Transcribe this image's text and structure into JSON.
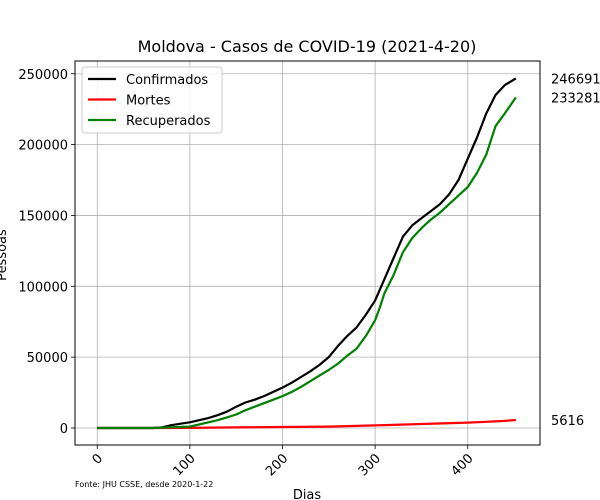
{
  "chart_data": {
    "type": "line",
    "title": "Moldova - Casos de COVID-19 (2021-4-20)",
    "xlabel": "Dias",
    "ylabel": "Pessoas",
    "xlim": [
      -24,
      478
    ],
    "ylim": [
      -12000,
      259000
    ],
    "xticks": [
      0,
      100,
      200,
      300,
      400
    ],
    "yticks": [
      0,
      50000,
      100000,
      150000,
      200000,
      250000
    ],
    "grid": true,
    "legend_position": "top-left",
    "source_note": "Fonte: JHU CSSE, desde 2020-1-22",
    "series": [
      {
        "name": "Confirmados",
        "color": "#000000",
        "end_label": "246691",
        "points": [
          [
            0,
            0
          ],
          [
            40,
            0
          ],
          [
            60,
            0
          ],
          [
            70,
            500
          ],
          [
            80,
            2000
          ],
          [
            90,
            3000
          ],
          [
            100,
            4000
          ],
          [
            110,
            5500
          ],
          [
            120,
            7000
          ],
          [
            130,
            9000
          ],
          [
            140,
            11500
          ],
          [
            150,
            15000
          ],
          [
            160,
            18000
          ],
          [
            170,
            20000
          ],
          [
            180,
            22500
          ],
          [
            190,
            25500
          ],
          [
            200,
            28500
          ],
          [
            210,
            32000
          ],
          [
            220,
            36000
          ],
          [
            230,
            40000
          ],
          [
            240,
            44500
          ],
          [
            250,
            50000
          ],
          [
            260,
            58000
          ],
          [
            270,
            65000
          ],
          [
            280,
            71000
          ],
          [
            290,
            80000
          ],
          [
            300,
            90000
          ],
          [
            310,
            105000
          ],
          [
            320,
            120000
          ],
          [
            330,
            135000
          ],
          [
            340,
            143000
          ],
          [
            350,
            148000
          ],
          [
            360,
            153000
          ],
          [
            370,
            158000
          ],
          [
            380,
            165000
          ],
          [
            390,
            175000
          ],
          [
            400,
            190000
          ],
          [
            410,
            205000
          ],
          [
            420,
            222000
          ],
          [
            430,
            235000
          ],
          [
            440,
            242000
          ],
          [
            452,
            246691
          ]
        ]
      },
      {
        "name": "Mortes",
        "color": "#ff0000",
        "end_label": "5616",
        "points": [
          [
            0,
            0
          ],
          [
            60,
            0
          ],
          [
            100,
            100
          ],
          [
            150,
            400
          ],
          [
            200,
            700
          ],
          [
            250,
            1000
          ],
          [
            300,
            1800
          ],
          [
            350,
            2800
          ],
          [
            400,
            3800
          ],
          [
            420,
            4400
          ],
          [
            440,
            5000
          ],
          [
            452,
            5616
          ]
        ]
      },
      {
        "name": "Recuperados",
        "color": "#008000",
        "end_label": "233281",
        "points": [
          [
            0,
            0
          ],
          [
            60,
            0
          ],
          [
            80,
            500
          ],
          [
            90,
            800
          ],
          [
            100,
            1000
          ],
          [
            110,
            2500
          ],
          [
            120,
            4000
          ],
          [
            130,
            5500
          ],
          [
            140,
            7500
          ],
          [
            150,
            9500
          ],
          [
            160,
            12500
          ],
          [
            170,
            15000
          ],
          [
            180,
            17500
          ],
          [
            190,
            20000
          ],
          [
            200,
            22500
          ],
          [
            210,
            25500
          ],
          [
            220,
            29000
          ],
          [
            230,
            33000
          ],
          [
            240,
            37000
          ],
          [
            250,
            41000
          ],
          [
            260,
            45500
          ],
          [
            270,
            51000
          ],
          [
            280,
            56000
          ],
          [
            290,
            65000
          ],
          [
            300,
            76000
          ],
          [
            305,
            85000
          ],
          [
            310,
            95000
          ],
          [
            320,
            108000
          ],
          [
            330,
            124000
          ],
          [
            340,
            134000
          ],
          [
            350,
            141000
          ],
          [
            360,
            147000
          ],
          [
            370,
            152000
          ],
          [
            380,
            158000
          ],
          [
            390,
            164000
          ],
          [
            400,
            170000
          ],
          [
            410,
            180000
          ],
          [
            420,
            193000
          ],
          [
            430,
            213000
          ],
          [
            440,
            222000
          ],
          [
            452,
            233281
          ]
        ]
      }
    ]
  }
}
